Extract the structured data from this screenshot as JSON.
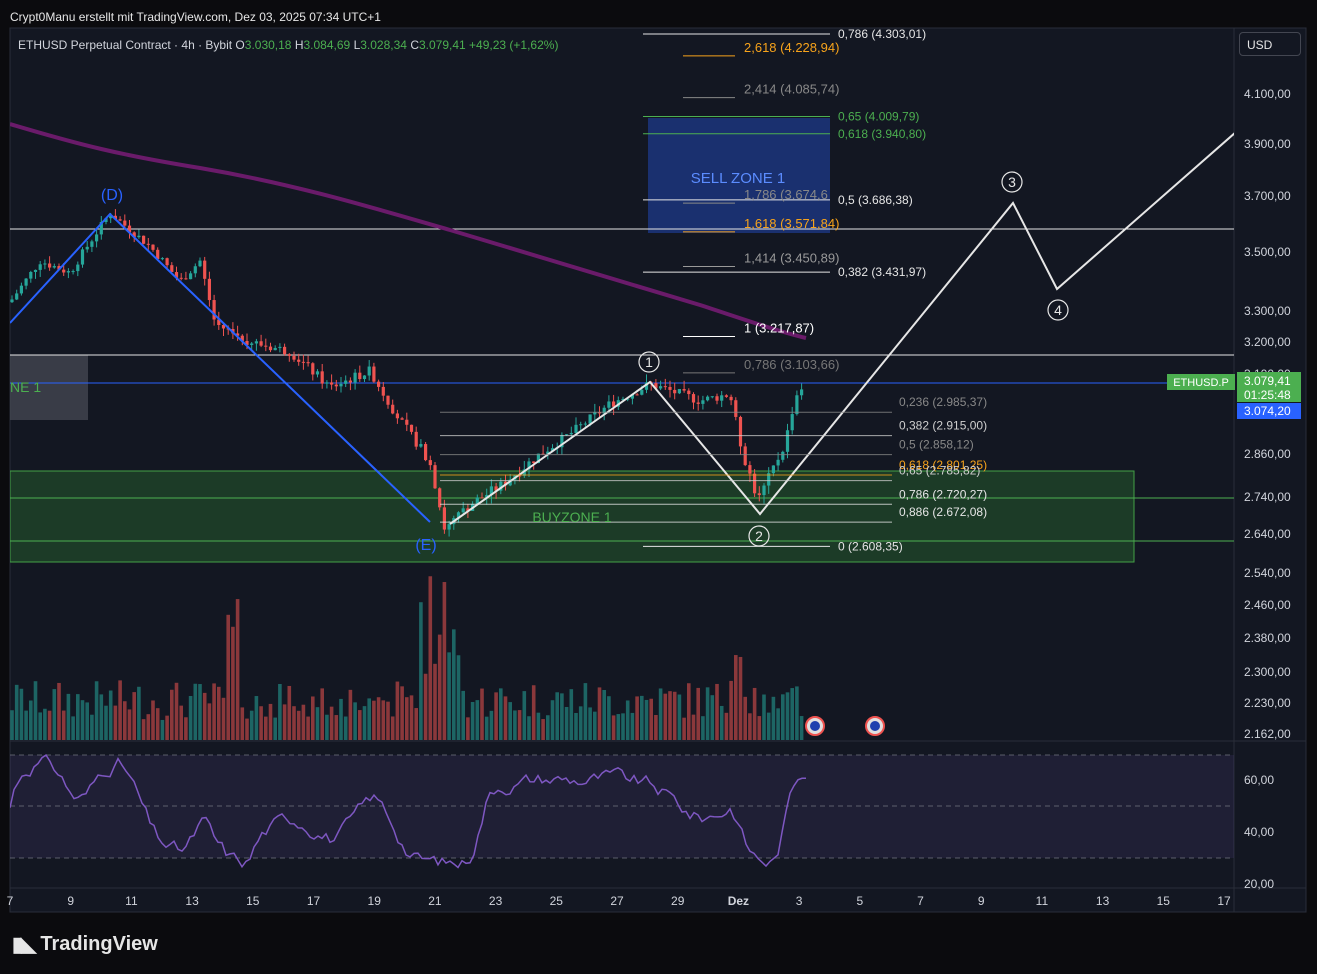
{
  "header": {
    "attribution": "Crypt0Manu erstellt mit TradingView.com, Dez 03, 2025 07:34 UTC+1",
    "symbol_line": "ETHUSD Perpetual Contract · 4h · Bybit",
    "o_label": "O",
    "o_value": "3.030,18",
    "h_label": "H",
    "h_value": "3.084,69",
    "l_label": "L",
    "l_value": "3.028,34",
    "c_label": "C",
    "c_value": "3.079,41",
    "change": "+49,23 (+1,62%)"
  },
  "currency_button": "USD",
  "brand": "TradingView",
  "colors": {
    "up": "#26a69a",
    "down": "#ef5350",
    "ma": "#6a1b6a",
    "fib_orange": "#f7a31b",
    "fib_green": "#4caf50",
    "buyzone": "#2e7d32",
    "sellzone": "#1e3a8a",
    "rsi": "#7e57c2",
    "price_tag": "#4caf50"
  },
  "chart_data": {
    "type": "candlestick",
    "price_axis": {
      "ticks": [
        "4.100,00",
        "3.900,00",
        "3.700,00",
        "3.500,00",
        "3.300,00",
        "3.200,00",
        "3.100,00",
        "2.860,00",
        "2.740,00",
        "2.640,00",
        "2.540,00",
        "2.460,00",
        "2.380,00",
        "2.300,00",
        "2.230,00",
        "2.162,00"
      ],
      "tick_values": [
        4100,
        3900,
        3700,
        3500,
        3300,
        3200,
        3100,
        2860,
        2740,
        2640,
        2540,
        2460,
        2380,
        2300,
        2230,
        2162
      ]
    },
    "rsi_axis": {
      "ticks": [
        "60,00",
        "40,00",
        "20,00"
      ],
      "tick_values": [
        60,
        40,
        20
      ],
      "bands": [
        70,
        50,
        30
      ]
    },
    "x_axis": {
      "ticks": [
        "7",
        "9",
        "11",
        "13",
        "15",
        "17",
        "19",
        "21",
        "23",
        "25",
        "27",
        "29",
        "Dez",
        "3",
        "5",
        "7",
        "9",
        "11",
        "13",
        "15",
        "17"
      ]
    },
    "last_price": {
      "symbol": "ETHUSD.P",
      "price": "3.079,41",
      "countdown": "01:25:48",
      "bid": "3.074,20"
    },
    "wave_labels_primary": [
      "(D)",
      "(E)"
    ],
    "wave_labels_impulse": [
      "1",
      "2",
      "3",
      "4"
    ],
    "zones": {
      "sell": "SELL ZONE 1",
      "buy": "BUYZONE 1",
      "left": "NE 1"
    },
    "fib_top": [
      {
        "label": "0,786 (4.303,01)",
        "value": 4303.01,
        "color": "#e6e6e6"
      },
      {
        "label": "0,65 (4.009,79)",
        "value": 4009.79,
        "color": "#4caf50"
      },
      {
        "label": "0,618 (3.940,80)",
        "value": 3940.8,
        "color": "#4caf50"
      },
      {
        "label": "0,5 (3.686,38)",
        "value": 3686.38,
        "color": "#e6e6e6"
      },
      {
        "label": "0,382 (3.431,97)",
        "value": 3431.97,
        "color": "#e6e6e6"
      },
      {
        "label": "0 (2.608,35)",
        "value": 2608.35,
        "color": "#e6e6e6"
      }
    ],
    "fib_ext": [
      {
        "label": "2,618 (4.228,94)",
        "value": 4228.94,
        "color": "#f7a31b"
      },
      {
        "label": "2,414 (4.085,74)",
        "value": 4085.74,
        "color": "#888888"
      },
      {
        "label": "1,786 (3.674,6",
        "value": 3674.6,
        "color": "#888888"
      },
      {
        "label": "1,618 (3.571,84)",
        "value": 3571.84,
        "color": "#f7a31b"
      },
      {
        "label": "1,414 (3.450,89)",
        "value": 3450.89,
        "color": "#999999"
      },
      {
        "label": "1 (3.217,87)",
        "value": 3217.87,
        "color": "#ffffff"
      },
      {
        "label": "0,786 (3.103,66)",
        "value": 3103.66,
        "color": "#777777"
      }
    ],
    "fib_retr": [
      {
        "label": "0,236 (2.985,37)",
        "value": 2985.37,
        "color": "#888888"
      },
      {
        "label": "0,382 (2.915,00)",
        "value": 2915.0,
        "color": "#cfcfcf"
      },
      {
        "label": "0,5 (2.858,12)",
        "value": 2858.12,
        "color": "#888888"
      },
      {
        "label": "0,618 (2.801,25)",
        "value": 2801.25,
        "color": "#f7a31b"
      },
      {
        "label": "0,65 (2.785,82)",
        "value": 2785.82,
        "color": "#cfcfcf"
      },
      {
        "label": "0,786 (2.720,27)",
        "value": 2720.27,
        "color": "#e6e6e6"
      },
      {
        "label": "0,886 (2.672,08)",
        "value": 2672.08,
        "color": "#e6e6e6"
      }
    ]
  }
}
